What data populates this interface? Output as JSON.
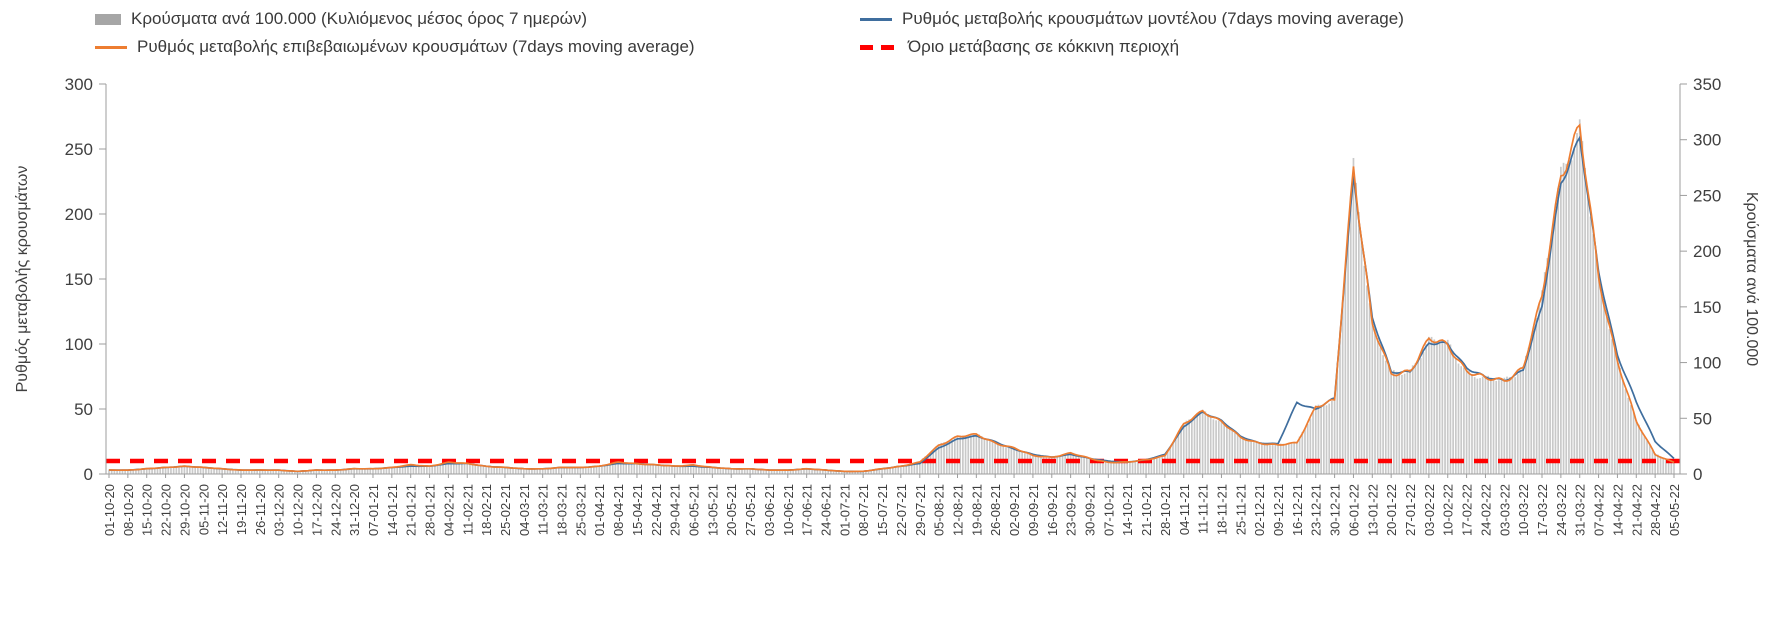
{
  "colors": {
    "bar_fill": "#c9c9c9",
    "bar_legend": "#a6a6a6",
    "model_line": "#3f6e9e",
    "confirmed_line": "#ed7d31",
    "threshold": "#ff0000",
    "text": "#3f3f3f",
    "axis": "#9d9d9d"
  },
  "axes": {
    "left_title": "Ρυθμός μεταβολής κρουσμάτων",
    "right_title": "Κρούσματα ανά 100.000",
    "left_ticks": [
      0,
      50,
      100,
      150,
      200,
      250,
      300
    ],
    "right_ticks": [
      0,
      50,
      100,
      150,
      200,
      250,
      300,
      350
    ]
  },
  "chart_data": {
    "type": "combo-bar-line",
    "title": "",
    "left_ylim": [
      0,
      300
    ],
    "right_ylim": [
      0,
      350
    ],
    "grid": false,
    "legend_position": "top",
    "categories": [
      "01-10-20",
      "08-10-20",
      "15-10-20",
      "22-10-20",
      "29-10-20",
      "05-11-20",
      "12-11-20",
      "19-11-20",
      "26-11-20",
      "03-12-20",
      "10-12-20",
      "17-12-20",
      "24-12-20",
      "31-12-20",
      "07-01-21",
      "14-01-21",
      "21-01-21",
      "28-01-21",
      "04-02-21",
      "11-02-21",
      "18-02-21",
      "25-02-21",
      "04-03-21",
      "11-03-21",
      "18-03-21",
      "25-03-21",
      "01-04-21",
      "08-04-21",
      "15-04-21",
      "22-04-21",
      "29-04-21",
      "06-05-21",
      "13-05-21",
      "20-05-21",
      "27-05-21",
      "03-06-21",
      "10-06-21",
      "17-06-21",
      "24-06-21",
      "01-07-21",
      "08-07-21",
      "15-07-21",
      "22-07-21",
      "29-07-21",
      "05-08-21",
      "12-08-21",
      "19-08-21",
      "26-08-21",
      "02-09-21",
      "09-09-21",
      "16-09-21",
      "23-09-21",
      "30-09-21",
      "07-10-21",
      "14-10-21",
      "21-10-21",
      "28-10-21",
      "04-11-21",
      "11-11-21",
      "18-11-21",
      "25-11-21",
      "02-12-21",
      "09-12-21",
      "16-12-21",
      "23-12-21",
      "30-12-21",
      "06-01-22",
      "13-01-22",
      "20-01-22",
      "27-01-22",
      "03-02-22",
      "10-02-22",
      "17-02-22",
      "24-02-22",
      "03-03-22",
      "10-03-22",
      "17-03-22",
      "24-03-22",
      "31-03-22",
      "07-04-22",
      "14-04-22",
      "21-04-22",
      "28-04-22",
      "05-05-22"
    ],
    "series": [
      {
        "id": "bars",
        "name": "Κρούσματα ανά 100.000 (Κυλιόμενος μέσος όρος 7 ημερών)",
        "type": "bar",
        "axis": "right",
        "values": [
          4,
          4,
          5,
          6,
          7,
          6,
          5,
          4,
          4,
          4,
          2,
          4,
          4,
          5,
          5,
          6,
          8,
          7,
          11,
          9,
          7,
          6,
          5,
          5,
          6,
          6,
          7,
          11,
          9,
          8,
          7,
          8,
          6,
          5,
          5,
          4,
          4,
          5,
          4,
          2,
          2,
          5,
          7,
          11,
          26,
          34,
          35,
          28,
          23,
          16,
          15,
          19,
          14,
          11,
          11,
          13,
          16,
          44,
          57,
          47,
          33,
          28,
          26,
          28,
          61,
          65,
          278,
          134,
          89,
          93,
          120,
          116,
          93,
          85,
          84,
          96,
          158,
          271,
          312,
          175,
          103,
          47,
          18,
          11
        ]
      },
      {
        "id": "model",
        "name": "Ρυθμός μεταβολής κρουσμάτων μοντέλου (7days moving average)",
        "type": "line",
        "axis": "left",
        "values": [
          3,
          3,
          4,
          5,
          6,
          5,
          4,
          3,
          3,
          3,
          2,
          3,
          3,
          4,
          4,
          5,
          6,
          6,
          8,
          8,
          6,
          5,
          4,
          4,
          5,
          5,
          6,
          8,
          8,
          7,
          6,
          6,
          5,
          4,
          4,
          3,
          3,
          4,
          3,
          2,
          2,
          4,
          6,
          8,
          20,
          27,
          29,
          25,
          19,
          15,
          13,
          15,
          12,
          10,
          9,
          11,
          15,
          36,
          48,
          41,
          29,
          24,
          23,
          55,
          50,
          58,
          230,
          120,
          78,
          79,
          100,
          100,
          82,
          74,
          72,
          80,
          128,
          225,
          258,
          155,
          92,
          55,
          25,
          12
        ]
      },
      {
        "id": "confirmed",
        "name": "Ρυθμός μεταβολής επιβεβαιωμένων κρουσμάτων (7days moving average)",
        "type": "line",
        "axis": "left",
        "values": [
          3,
          3,
          4,
          5,
          6,
          5,
          4,
          3,
          3,
          3,
          2,
          3,
          3,
          4,
          4,
          5,
          7,
          6,
          9,
          8,
          6,
          5,
          4,
          4,
          5,
          5,
          6,
          9,
          8,
          7,
          6,
          7,
          5,
          4,
          4,
          3,
          3,
          4,
          3,
          2,
          2,
          4,
          6,
          9,
          22,
          29,
          30,
          24,
          20,
          14,
          13,
          16,
          12,
          9,
          9,
          11,
          14,
          38,
          49,
          40,
          28,
          24,
          22,
          24,
          52,
          56,
          238,
          115,
          76,
          80,
          103,
          99,
          80,
          73,
          72,
          82,
          135,
          232,
          267,
          150,
          88,
          40,
          15,
          9
        ]
      }
    ],
    "threshold": {
      "label": "Όριο μετάβασης σε κόκκινη περιοχή",
      "axis": "left",
      "value": 10
    }
  }
}
